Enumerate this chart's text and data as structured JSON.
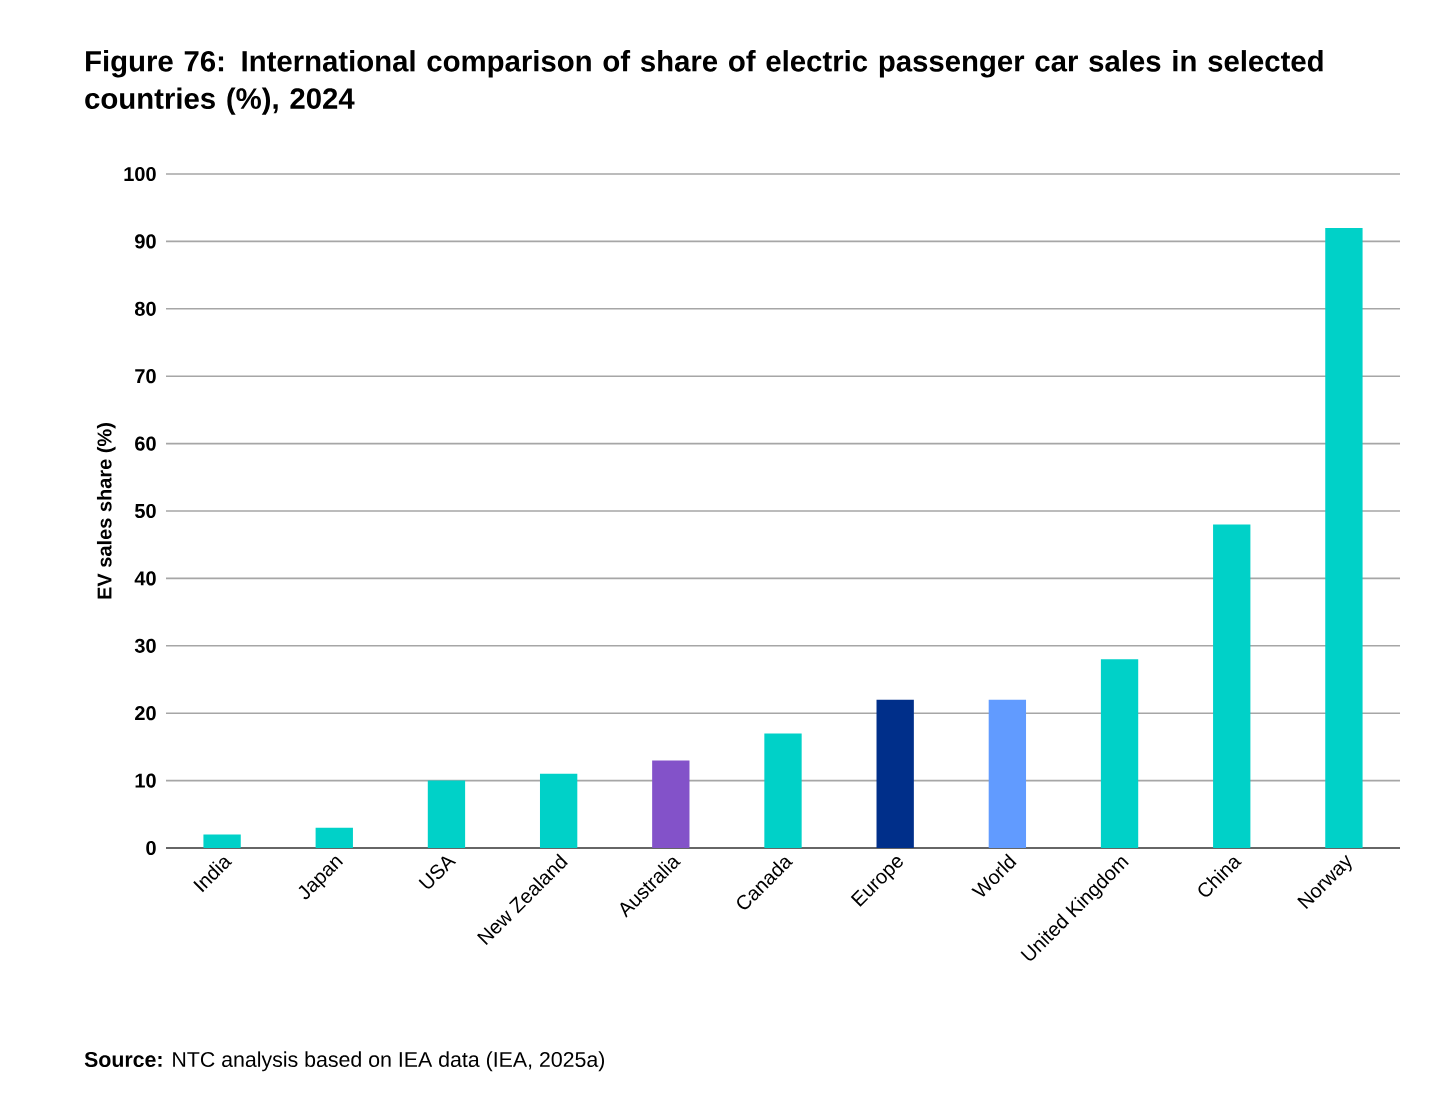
{
  "chart_data": {
    "type": "bar",
    "title": "Figure 76: International comparison of share of electric passenger car sales in selected countries (%), 2024",
    "ylabel": "EV sales share (%)",
    "categories": [
      "India",
      "Japan",
      "USA",
      "New Zealand",
      "Australia",
      "Canada",
      "Europe",
      "World",
      "United Kingdom",
      "China",
      "Norway"
    ],
    "values": [
      2,
      3,
      10,
      11,
      13,
      17,
      22,
      22,
      28,
      48,
      92
    ],
    "colors": [
      "#00d1c8",
      "#00d1c8",
      "#00d1c8",
      "#00d1c8",
      "#8352c9",
      "#00d1c8",
      "#002f8a",
      "#619bff",
      "#00d1c8",
      "#00d1c8",
      "#00d1c8"
    ],
    "ylim": [
      0,
      100
    ],
    "yticks": [
      0,
      10,
      20,
      30,
      40,
      50,
      60,
      70,
      80,
      90,
      100
    ],
    "grid": "y",
    "annotations": [
      "**Source:** NTC analysis based on IEA data (IEA, 2025a)"
    ]
  }
}
